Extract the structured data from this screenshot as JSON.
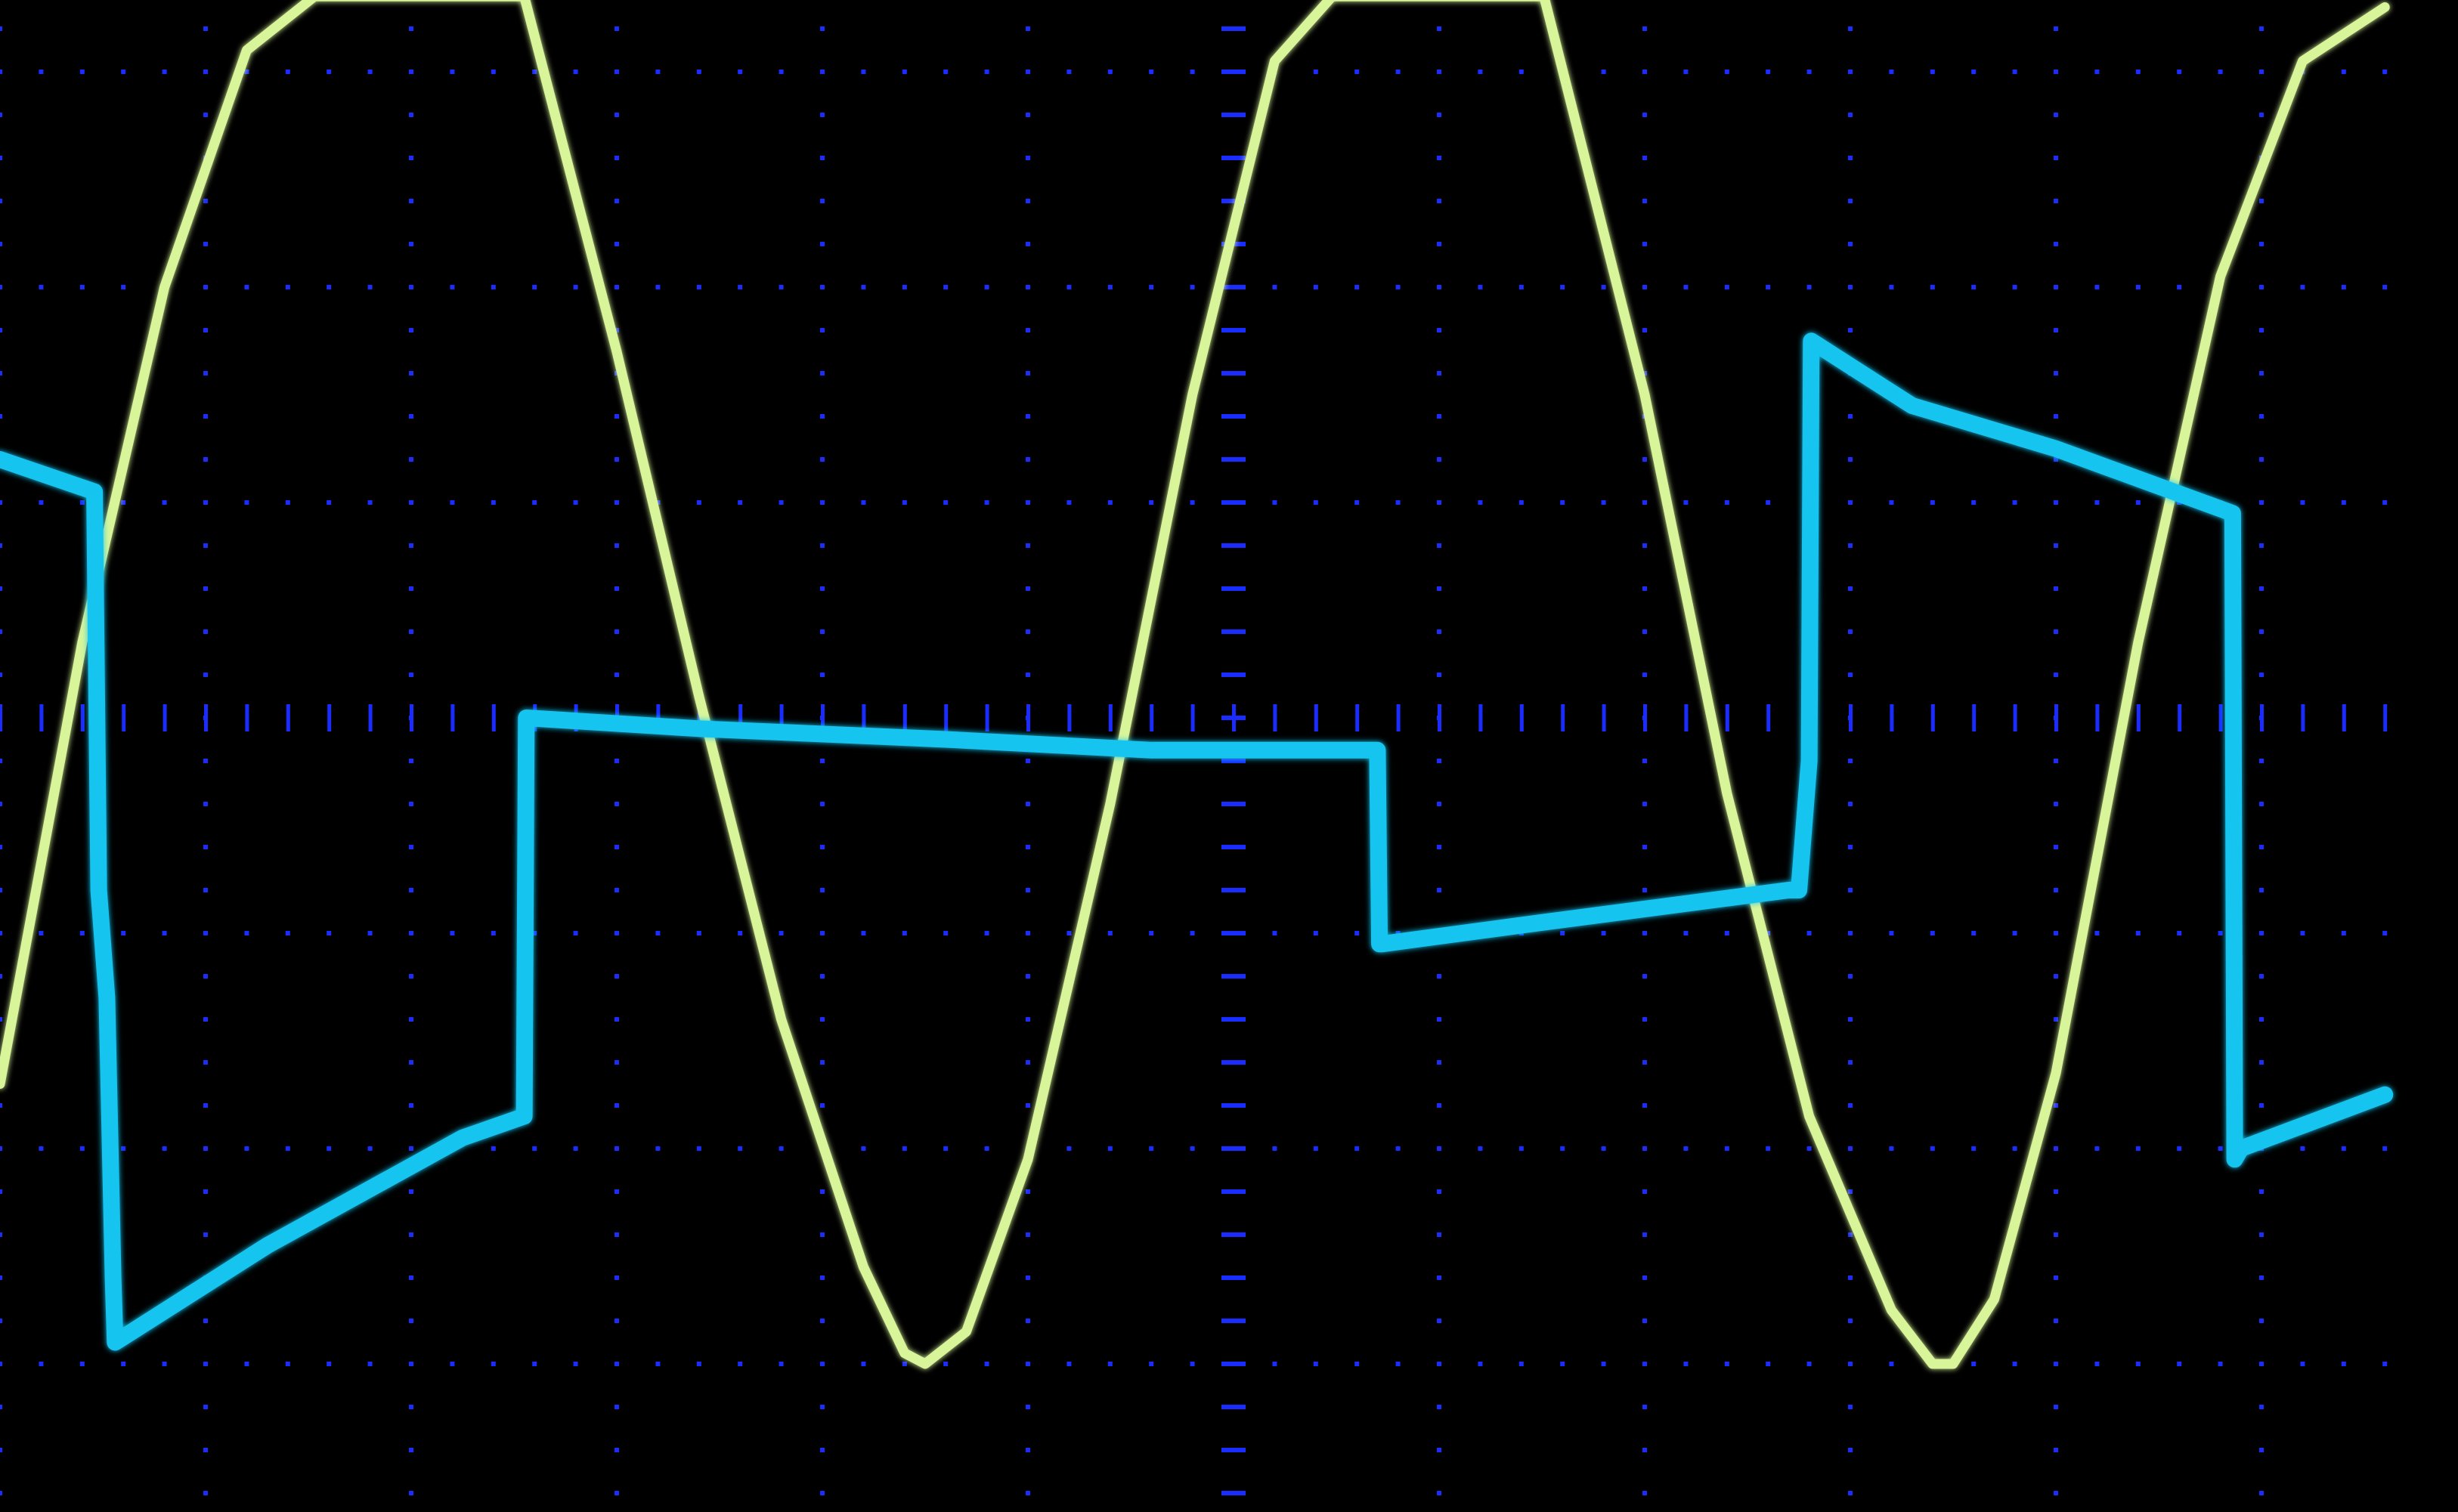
{
  "chart_data": {
    "type": "line",
    "title": "",
    "xlabel": "",
    "ylabel": "",
    "xlim": [
      0,
      11.6
    ],
    "ylim": [
      -4.2,
      4
    ],
    "grid": true,
    "colors": {
      "background": "#000000",
      "graticule": "#1a2cff",
      "ch1": "#d8f59a",
      "ch2": "#19c4f0"
    },
    "series": [
      {
        "name": "",
        "channel": "ch1",
        "color": "#d8f59a",
        "x": [
          0.0,
          0.4,
          0.8,
          1.2,
          1.53,
          2.55,
          3.0,
          3.4,
          3.8,
          4.2,
          4.4,
          4.5,
          4.7,
          5.0,
          5.4,
          5.8,
          6.2,
          6.48,
          7.51,
          8.0,
          8.4,
          8.8,
          9.2,
          9.4,
          9.5,
          9.7,
          10.0,
          10.4,
          10.8,
          11.2,
          11.6
        ],
        "y": [
          -1.7,
          0.35,
          2.0,
          3.1,
          3.35,
          3.35,
          1.7,
          0.1,
          -1.4,
          -2.55,
          -2.95,
          -3.0,
          -2.85,
          -2.05,
          -0.4,
          1.5,
          3.05,
          3.35,
          3.35,
          1.5,
          -0.35,
          -1.85,
          -2.75,
          -3.0,
          -3.0,
          -2.7,
          -1.65,
          0.35,
          2.05,
          3.05,
          3.3
        ]
      },
      {
        "name": "",
        "channel": "ch2",
        "color": "#19c4f0",
        "x": [
          0.0,
          0.46,
          0.48,
          0.52,
          0.55,
          0.56,
          1.3,
          2.25,
          2.55,
          2.56,
          3.4,
          4.6,
          5.6,
          6.7,
          6.71,
          6.72,
          7.5,
          8.7,
          8.75,
          8.8,
          8.81,
          9.3,
          10.0,
          10.86,
          10.87,
          10.9,
          11.6
        ],
        "y": [
          1.2,
          1.05,
          -0.8,
          -1.3,
          -2.6,
          -2.9,
          -2.45,
          -1.95,
          -1.85,
          0.0,
          -0.05,
          -0.1,
          -0.15,
          -0.15,
          -1.05,
          -1.05,
          -0.95,
          -0.8,
          -0.8,
          -0.2,
          1.75,
          1.45,
          1.25,
          0.95,
          -2.05,
          -2.0,
          -1.75
        ]
      }
    ]
  }
}
